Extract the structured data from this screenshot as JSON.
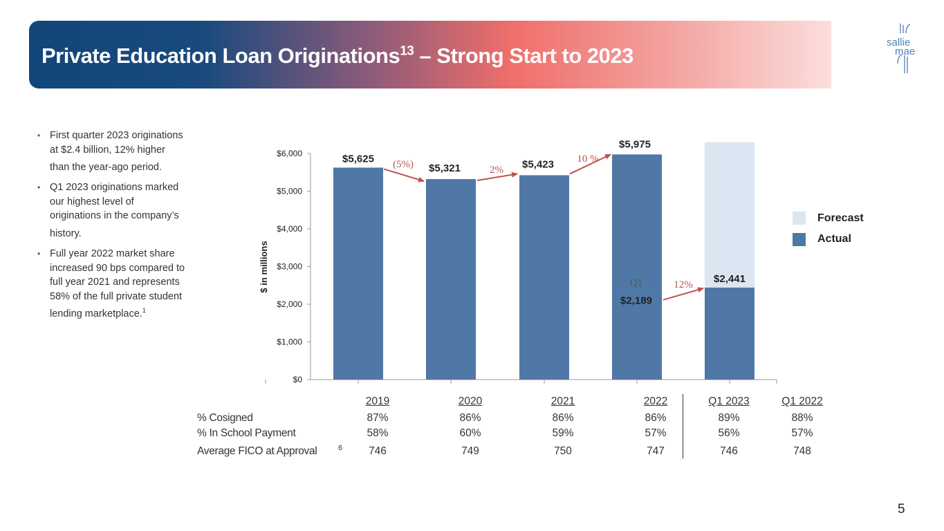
{
  "header": {
    "title_main": "Private Education Loan Originations",
    "title_sup": "13",
    "title_rest": " – Strong Start to 2023"
  },
  "logo": {
    "line1": "sallie",
    "line2": "mae",
    "mark": "·"
  },
  "bullets": [
    {
      "text": "First quarter 2023 originations at $2.4 billion, 12% higher than the year-ago period.",
      "sup": ""
    },
    {
      "text": "Q1 2023 originations marked our highest level of originations in the company’s history.",
      "sup": ""
    },
    {
      "text": "Full year 2022 market share increased 90 bps compared to full year 2021 and represents 58% of the full private student lending marketplace.",
      "sup": "1"
    }
  ],
  "chart_data": {
    "type": "bar",
    "ylabel": "$ in millions",
    "ylim": [
      0,
      6000
    ],
    "yticks": [
      "$0",
      "$1,000",
      "$2,000",
      "$3,000",
      "$4,000",
      "$5,000",
      "$6,000"
    ],
    "ytick_values": [
      0,
      1000,
      2000,
      3000,
      4000,
      5000,
      6000
    ],
    "categories": [
      "2019",
      "2020",
      "2021",
      "2022",
      "Q1 2023"
    ],
    "series": [
      {
        "name": "Actual",
        "values": [
          5625,
          5321,
          5423,
          5975,
          2441
        ],
        "color": "#4f78a7"
      },
      {
        "name": "Forecast",
        "values": [
          0,
          0,
          0,
          0,
          6300
        ],
        "color": "#dce6f2"
      }
    ],
    "value_labels": [
      "$5,625",
      "$5,321",
      "$5,423",
      "$5,975",
      "$2,441"
    ],
    "q1_2022": {
      "label": "Q1",
      "value": 2189,
      "value_label": "$2,189"
    },
    "growth_labels": [
      "(5%)",
      "2%",
      "10 %",
      "12%"
    ],
    "legend": {
      "placement": "right",
      "entries": [
        "Forecast",
        "Actual"
      ]
    },
    "grid": false
  },
  "table": {
    "headers": [
      "2019",
      "2020",
      "2021",
      "2022",
      "Q1 2023",
      "Q1 2022"
    ],
    "rows": [
      {
        "label": "% Cosigned",
        "values": [
          "87%",
          "86%",
          "86%",
          "86%",
          "89%",
          "88%"
        ]
      },
      {
        "label": "% In School Payment",
        "values": [
          "58%",
          "60%",
          "59%",
          "57%",
          "56%",
          "57%"
        ]
      },
      {
        "label": "Average FICO at Approval",
        "values": [
          "746",
          "749",
          "750",
          "747",
          "746",
          "748"
        ]
      }
    ],
    "footnote": "6"
  },
  "page_number": "5",
  "colors": {
    "accent_red": "#c0504d",
    "actual": "#4f78a7",
    "forecast": "#dce6f2",
    "navy": "#12457a"
  }
}
